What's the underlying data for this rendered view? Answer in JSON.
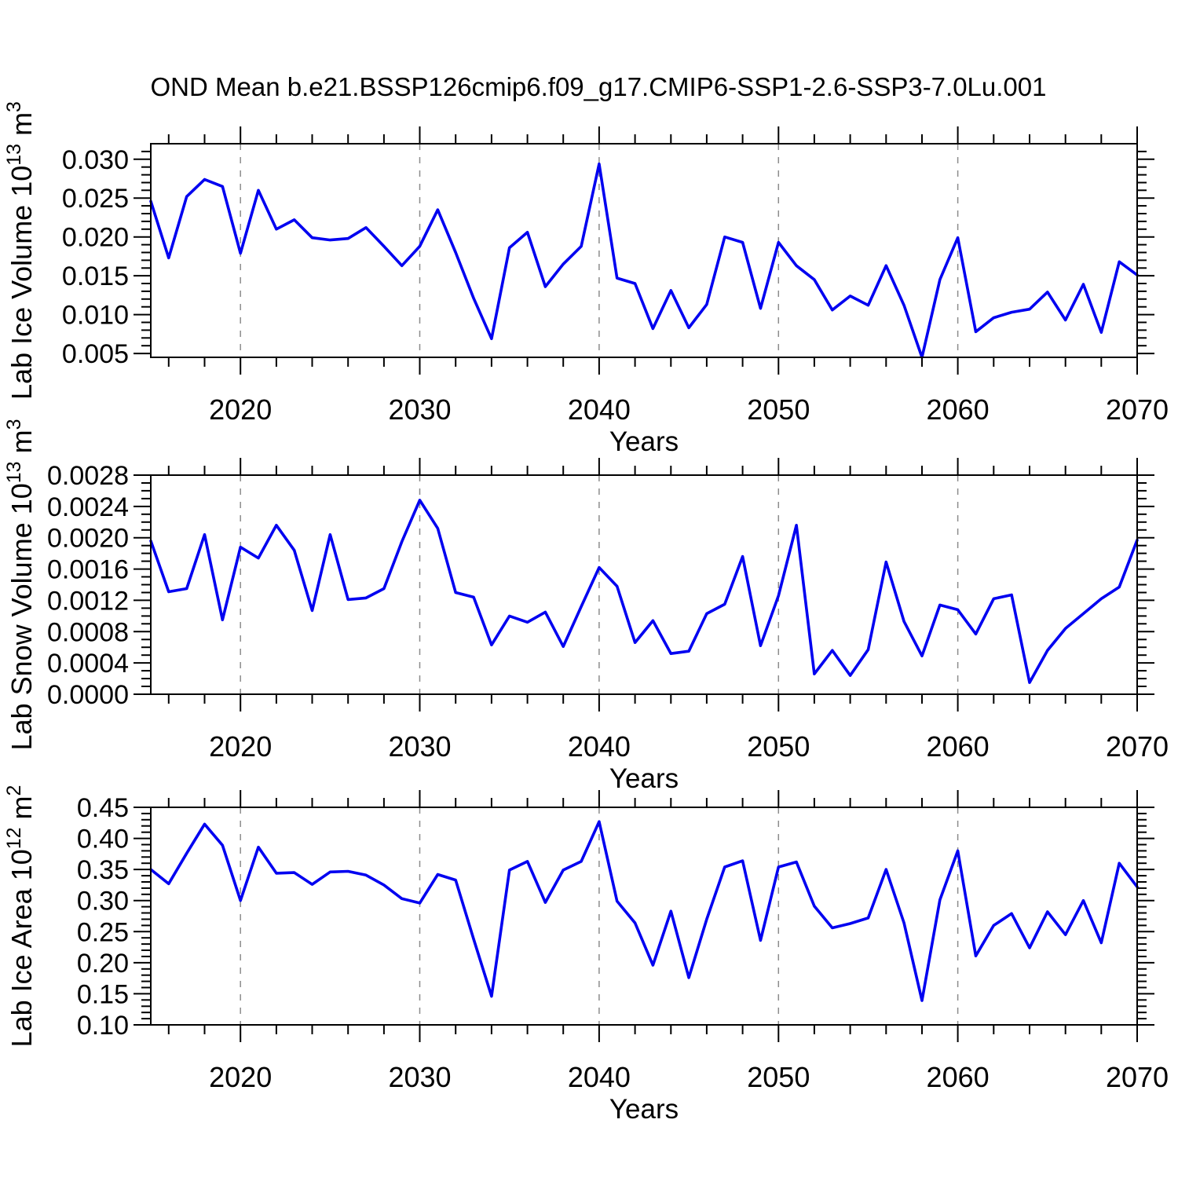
{
  "chart_data": {
    "type": "line",
    "title": "OND Mean b.e21.BSSP126cmip6.f09_g17.CMIP6-SSP1-2.6-SSP3-7.0Lu.001",
    "x_label": "Years",
    "line_color": "#0000f0",
    "grid_on": true,
    "grid_years": [
      2020,
      2030,
      2040,
      2050,
      2060
    ],
    "legend_position": "none",
    "x_range": [
      2015,
      2070
    ],
    "x_minor_step": 2,
    "x_ticks": [
      {
        "v": 2020,
        "label": "2020"
      },
      {
        "v": 2030,
        "label": "2030"
      },
      {
        "v": 2040,
        "label": "2040"
      },
      {
        "v": 2050,
        "label": "2050"
      },
      {
        "v": 2060,
        "label": "2060"
      },
      {
        "v": 2070,
        "label": "2070"
      }
    ],
    "x": [
      2015,
      2016,
      2017,
      2018,
      2019,
      2020,
      2021,
      2022,
      2023,
      2024,
      2025,
      2026,
      2027,
      2028,
      2029,
      2030,
      2031,
      2032,
      2033,
      2034,
      2035,
      2036,
      2037,
      2038,
      2039,
      2040,
      2041,
      2042,
      2043,
      2044,
      2045,
      2046,
      2047,
      2048,
      2049,
      2050,
      2051,
      2052,
      2053,
      2054,
      2055,
      2056,
      2057,
      2058,
      2059,
      2060,
      2061,
      2062,
      2063,
      2064,
      2065,
      2066,
      2067,
      2068,
      2069,
      2070
    ],
    "panels": [
      {
        "name": "lab-ice-volume",
        "ylabel_plain": "Lab Ice Volume 10^13 m^3",
        "ylabel": {
          "base": "Lab Ice Volume 10",
          "sup": "13",
          "unit": " m",
          "unit_sup": "3"
        },
        "ylim": [
          0.0045,
          0.032
        ],
        "y_major_step": 0.005,
        "y_minor_step": 0.001,
        "y_ticks": [
          {
            "v": 0.005,
            "label": "0.005"
          },
          {
            "v": 0.01,
            "label": "0.010"
          },
          {
            "v": 0.015,
            "label": "0.015"
          },
          {
            "v": 0.02,
            "label": "0.020"
          },
          {
            "v": 0.025,
            "label": "0.025"
          },
          {
            "v": 0.03,
            "label": "0.030"
          }
        ],
        "values": [
          0.0246,
          0.0173,
          0.0252,
          0.0274,
          0.0265,
          0.0179,
          0.026,
          0.021,
          0.0222,
          0.0199,
          0.0196,
          0.0198,
          0.0212,
          0.0188,
          0.0163,
          0.0188,
          0.0235,
          0.018,
          0.0121,
          0.0069,
          0.0186,
          0.0206,
          0.0136,
          0.0165,
          0.0188,
          0.0294,
          0.0147,
          0.014,
          0.0082,
          0.0131,
          0.0083,
          0.0113,
          0.02,
          0.0193,
          0.0108,
          0.0193,
          0.0163,
          0.0145,
          0.0106,
          0.0124,
          0.0112,
          0.0163,
          0.0112,
          0.0045,
          0.0145,
          0.0199,
          0.0078,
          0.0096,
          0.0103,
          0.0107,
          0.0129,
          0.0093,
          0.0139,
          0.0077,
          0.0168,
          0.0151
        ]
      },
      {
        "name": "lab-snow-volume",
        "ylabel_plain": "Lab Snow Volume 10^13 m^3",
        "ylabel": {
          "base": "Lab Snow Volume 10",
          "sup": "13",
          "unit": " m",
          "unit_sup": "3"
        },
        "ylim": [
          0.0,
          0.0028
        ],
        "y_major_step": 0.0004,
        "y_minor_step": 0.0001,
        "y_ticks": [
          {
            "v": 0.0,
            "label": "0.0000"
          },
          {
            "v": 0.0004,
            "label": "0.0004"
          },
          {
            "v": 0.0008,
            "label": "0.0008"
          },
          {
            "v": 0.0012,
            "label": "0.0012"
          },
          {
            "v": 0.0016,
            "label": "0.0016"
          },
          {
            "v": 0.002,
            "label": "0.0020"
          },
          {
            "v": 0.0024,
            "label": "0.0024"
          },
          {
            "v": 0.0028,
            "label": "0.0028"
          }
        ],
        "values": [
          0.00196,
          0.00131,
          0.00135,
          0.00204,
          0.00095,
          0.00188,
          0.00174,
          0.00216,
          0.00184,
          0.00107,
          0.00204,
          0.00121,
          0.00123,
          0.00135,
          0.00195,
          0.00248,
          0.00212,
          0.0013,
          0.00124,
          0.00063,
          0.001,
          0.00092,
          0.00105,
          0.00061,
          0.00112,
          0.00162,
          0.00138,
          0.00066,
          0.00094,
          0.00052,
          0.00055,
          0.00103,
          0.00115,
          0.00176,
          0.00062,
          0.00126,
          0.00216,
          0.00026,
          0.00056,
          0.00024,
          0.00057,
          0.00169,
          0.00093,
          0.00049,
          0.00114,
          0.00108,
          0.00077,
          0.00122,
          0.00127,
          0.00015,
          0.00056,
          0.00084,
          0.00103,
          0.00122,
          0.00137,
          0.00197
        ]
      },
      {
        "name": "lab-ice-area",
        "ylabel_plain": "Lab Ice Area 10^12 m^2",
        "ylabel": {
          "base": "Lab Ice Area 10",
          "sup": "12",
          "unit": " m",
          "unit_sup": "2"
        },
        "ylim": [
          0.1,
          0.45
        ],
        "y_major_step": 0.05,
        "y_minor_step": 0.01,
        "y_ticks": [
          {
            "v": 0.1,
            "label": "0.10"
          },
          {
            "v": 0.15,
            "label": "0.15"
          },
          {
            "v": 0.2,
            "label": "0.20"
          },
          {
            "v": 0.25,
            "label": "0.25"
          },
          {
            "v": 0.3,
            "label": "0.30"
          },
          {
            "v": 0.35,
            "label": "0.35"
          },
          {
            "v": 0.4,
            "label": "0.40"
          },
          {
            "v": 0.45,
            "label": "0.45"
          }
        ],
        "values": [
          0.35,
          0.327,
          0.376,
          0.423,
          0.389,
          0.3,
          0.386,
          0.344,
          0.345,
          0.326,
          0.346,
          0.347,
          0.341,
          0.325,
          0.303,
          0.296,
          0.342,
          0.333,
          0.238,
          0.146,
          0.349,
          0.363,
          0.297,
          0.349,
          0.363,
          0.427,
          0.299,
          0.264,
          0.196,
          0.283,
          0.176,
          0.27,
          0.354,
          0.364,
          0.236,
          0.354,
          0.362,
          0.291,
          0.256,
          0.263,
          0.272,
          0.35,
          0.264,
          0.139,
          0.301,
          0.38,
          0.211,
          0.26,
          0.279,
          0.224,
          0.282,
          0.245,
          0.3,
          0.232,
          0.36,
          0.322
        ]
      }
    ]
  }
}
